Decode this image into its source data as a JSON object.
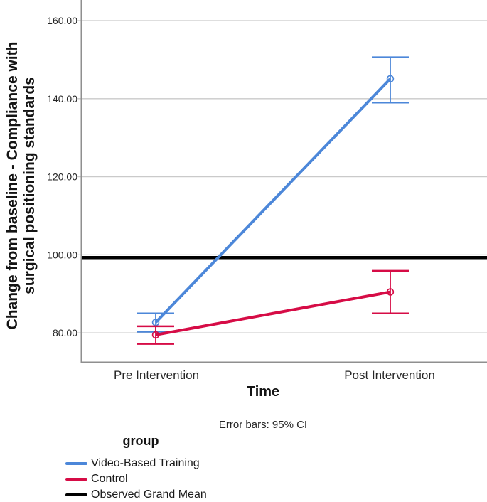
{
  "chart_data": {
    "type": "line",
    "chart_kind": "profile-plot-with-error-bars",
    "title": "",
    "categories": [
      "Pre Intervention",
      "Post Intervention"
    ],
    "xlabel": "Time",
    "ylabel": "Change from baseline - Compliance with surgical positioning standards",
    "ylabel_lines": [
      "Change from baseline - Compliance with",
      "surgical positioning standards"
    ],
    "y_ticks": [
      {
        "value": 80,
        "label": "80.00"
      },
      {
        "value": 100,
        "label": "100.00"
      },
      {
        "value": 120,
        "label": "120.00"
      },
      {
        "value": 140,
        "label": "140.00"
      },
      {
        "value": 160,
        "label": "160.00"
      }
    ],
    "ylim": [
      72.5,
      165.3
    ],
    "grid": "horizontal",
    "legend_position": "bottom-left",
    "series": [
      {
        "name": "Video-Based Training",
        "color": "#4C87D9",
        "marker": "open-circle",
        "values": [
          82.7,
          145.1
        ],
        "ci_low": [
          80.3,
          139.0
        ],
        "ci_high": [
          85.0,
          150.6
        ]
      },
      {
        "name": "Control",
        "color": "#D60C46",
        "marker": "open-circle",
        "values": [
          79.5,
          90.5
        ],
        "ci_low": [
          77.2,
          85.0
        ],
        "ci_high": [
          81.7,
          95.9
        ]
      }
    ],
    "reference_line": {
      "label": "Observed Grand Mean",
      "value": 99.3,
      "color": "#000000"
    },
    "footnote": "Error bars: 95% CI",
    "legend": {
      "title": "group",
      "entries": [
        {
          "label": "Video-Based Training",
          "color": "#4C87D9"
        },
        {
          "label": "Control",
          "color": "#D60C46"
        },
        {
          "label": "Observed Grand Mean",
          "color": "#000000"
        }
      ]
    }
  },
  "colors": {
    "gridline": "#CACACA",
    "axis": "#8F8F8F",
    "tick_text": "#262626"
  }
}
